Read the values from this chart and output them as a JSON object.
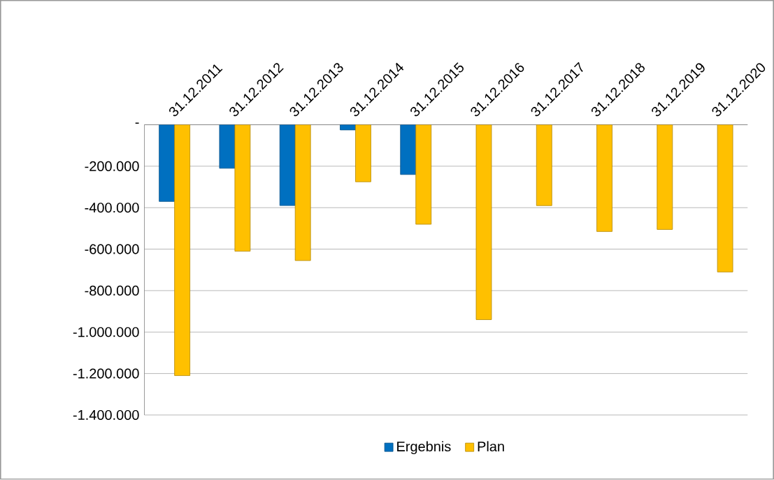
{
  "chart_data": {
    "type": "bar",
    "categories": [
      "31.12.2011",
      "31.12.2012",
      "31.12.2013",
      "31.12.2014",
      "31.12.2015",
      "31.12.2016",
      "31.12.2017",
      "31.12.2018",
      "31.12.2019",
      "31.12.2020"
    ],
    "series": [
      {
        "name": "Ergebnis",
        "color": "#0070c0",
        "values": [
          -370000,
          -210000,
          -390000,
          -25000,
          -240000,
          null,
          null,
          null,
          null,
          null
        ]
      },
      {
        "name": "Plan",
        "color": "#ffc000",
        "values": [
          -1210000,
          -610000,
          -655000,
          -275000,
          -480000,
          -940000,
          -390000,
          -515000,
          -505000,
          -710000
        ]
      }
    ],
    "ylim": [
      -1400000,
      0
    ],
    "yticks": [
      {
        "value": 0,
        "label": "-"
      },
      {
        "value": -200000,
        "label": "-200.000"
      },
      {
        "value": -400000,
        "label": "-400.000"
      },
      {
        "value": -600000,
        "label": "-600.000"
      },
      {
        "value": -800000,
        "label": "-800.000"
      },
      {
        "value": -1000000,
        "label": "-1.000.000"
      },
      {
        "value": -1200000,
        "label": "-1.200.000"
      },
      {
        "value": -1400000,
        "label": "-1.400.000"
      }
    ],
    "grid": "y",
    "legend": "bottom"
  }
}
